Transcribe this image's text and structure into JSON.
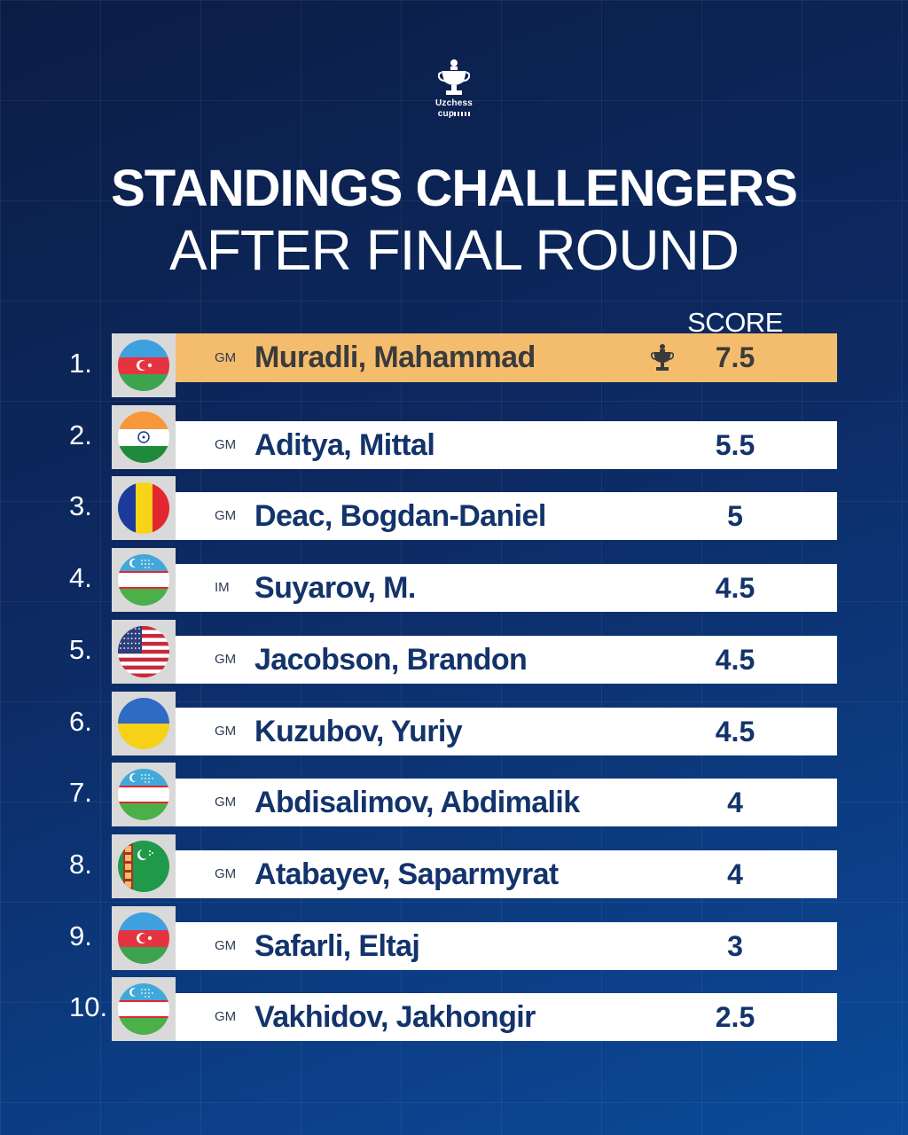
{
  "logo": {
    "line1": "Uzchess",
    "line2": "cup"
  },
  "title": {
    "line1": "STANDINGS CHALLENGERS",
    "line2": "AFTER FINAL ROUND"
  },
  "score_header": "SCORE",
  "colors": {
    "background": "#0d2a63",
    "highlight": "#f4bd6e",
    "name_text": "#13336b"
  },
  "rows": [
    {
      "rank": "1.",
      "flag": "azerbaijan-flag-icon",
      "title": "GM",
      "name": "Muradli, Mahammad",
      "score": "7.5",
      "winner_icon": "trophy-icon"
    },
    {
      "rank": "2.",
      "flag": "india-flag-icon",
      "title": "GM",
      "name": "Aditya, Mittal",
      "score": "5.5"
    },
    {
      "rank": "3.",
      "flag": "romania-flag-icon",
      "title": "GM",
      "name": "Deac, Bogdan-Daniel",
      "score": "5"
    },
    {
      "rank": "4.",
      "flag": "uzbekistan-flag-icon",
      "title": "IM",
      "name": "Suyarov, M.",
      "score": "4.5"
    },
    {
      "rank": "5.",
      "flag": "usa-flag-icon",
      "title": "GM",
      "name": "Jacobson, Brandon",
      "score": "4.5"
    },
    {
      "rank": "6.",
      "flag": "ukraine-flag-icon",
      "title": "GM",
      "name": "Kuzubov, Yuriy",
      "score": "4.5"
    },
    {
      "rank": "7.",
      "flag": "uzbekistan-flag-icon",
      "title": "GM",
      "name": "Abdisalimov, Abdimalik",
      "score": "4"
    },
    {
      "rank": "8.",
      "flag": "turkmenistan-flag-icon",
      "title": "GM",
      "name": "Atabayev, Saparmyrat",
      "score": "4"
    },
    {
      "rank": "9.",
      "flag": "azerbaijan-flag-icon",
      "title": "GM",
      "name": "Safarli, Eltaj",
      "score": "3"
    },
    {
      "rank": "10.",
      "flag": "uzbekistan-flag-icon",
      "title": "GM",
      "name": "Vakhidov, Jakhongir",
      "score": "2.5"
    }
  ]
}
